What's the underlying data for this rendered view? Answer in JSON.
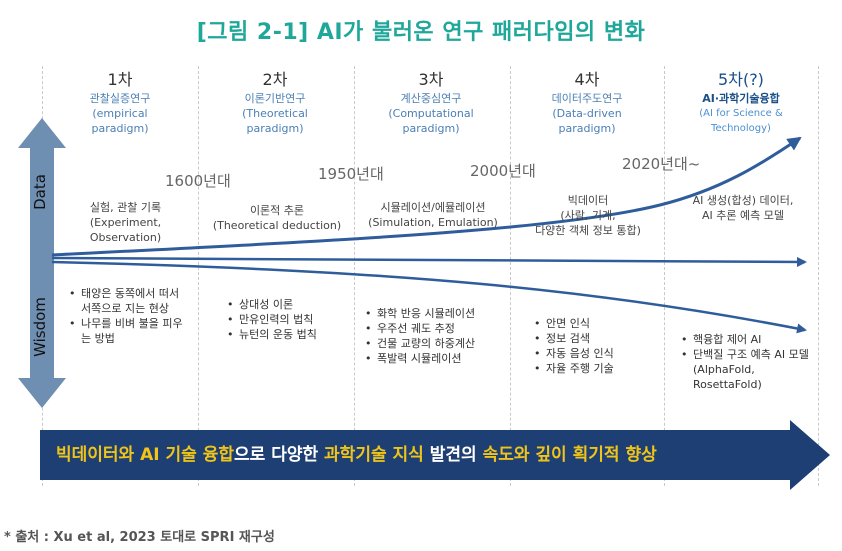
{
  "title": "[그림 2-1] AI가 불러온 연구 패러다임의 변화",
  "axis": {
    "top": "Data",
    "bottom": "Wisdom"
  },
  "eras": [
    {
      "num": "1차",
      "ko": "관찰실증연구",
      "en1": "(empirical",
      "en2": "paradigm)"
    },
    {
      "num": "2차",
      "ko": "이론기반연구",
      "en1": "(Theoretical",
      "en2": "paradigm)"
    },
    {
      "num": "3차",
      "ko": "계산중심연구",
      "en1": "(Computational",
      "en2": "paradigm)"
    },
    {
      "num": "4차",
      "ko": "데이터주도연구",
      "en1": "(Data-driven",
      "en2": "paradigm)"
    },
    {
      "num": "5차(?)",
      "ko": "AI·과학기술융합",
      "en1": "(AI for Science &",
      "en2": "Technology)"
    }
  ],
  "years": [
    "1600년대",
    "1950년대",
    "2000년대",
    "2020년대~"
  ],
  "data_desc": [
    [
      "실험, 관찰 기록",
      "(Experiment,",
      "Observation)"
    ],
    [
      "이론적 추론",
      "(Theoretical deduction)"
    ],
    [
      "시뮬레이션/에뮬레이션",
      "(Simulation, Emulation)"
    ],
    [
      "빅데이터",
      "(사람, 기계,",
      "다양한 객체 정보 통합)"
    ],
    [
      "AI 생성(합성) 데이터,",
      "AI 추론 예측 모델"
    ]
  ],
  "wisdom_items": [
    [
      "태양은 동쪽에서 떠서 서쪽으로 지는 현상",
      "나무를 비벼 불을 피우는 방법"
    ],
    [
      "상대성 이론",
      "만유인력의 법칙",
      "뉴턴의 운동 법칙"
    ],
    [
      "화학 반응 시뮬레이션",
      "우주선 궤도 추정",
      "건물 교량의 하중계산",
      "폭발력 시뮬레이션"
    ],
    [
      "안면 인식",
      "정보 검색",
      "자동 음성 인식",
      "자율 주행 기술"
    ],
    [
      "핵융합 제어 AI",
      "단백질 구조 예측 AI 모델 (AlphaFold, RosettaFold)"
    ]
  ],
  "banner": {
    "p1": "빅데이터와 AI 기술 융합",
    "p2": "으로 다양한 ",
    "p3": "과학기술 지식",
    "p4": " 발견의 ",
    "p5": "속도와 깊이 획기적 향상"
  },
  "source": "* 출처 : Xu et al, 2023 토대로 SPRI 재구성",
  "colors": {
    "title": "#1fa79a",
    "arrow": "#2f5d9b",
    "banner": "#1e3f73",
    "highlight": "#f0c419",
    "axis": "#6f8fb2"
  }
}
